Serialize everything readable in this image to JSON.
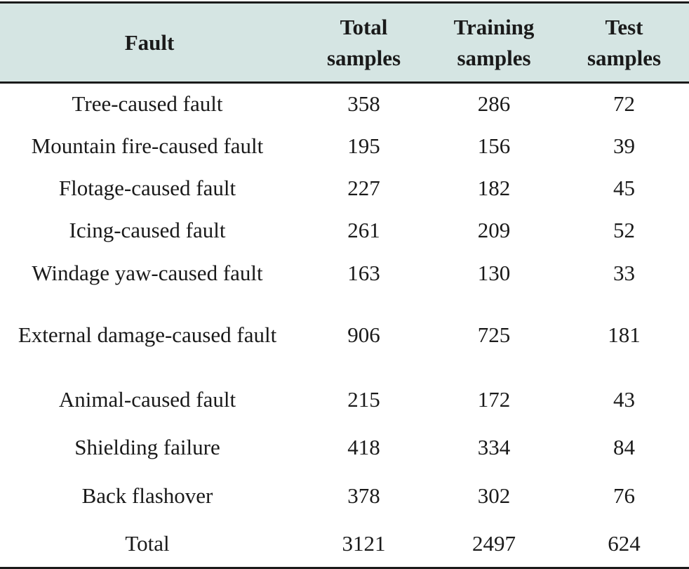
{
  "table": {
    "headers": {
      "fault": "Fault",
      "total_line1": "Total",
      "total_line2": "samples",
      "training_line1": "Training",
      "training_line2": "samples",
      "test_line1": "Test",
      "test_line2": "samples"
    },
    "rows": [
      {
        "fault": "Tree-caused fault",
        "total": "358",
        "training": "286",
        "test": "72"
      },
      {
        "fault": "Mountain fire-caused fault",
        "total": "195",
        "training": "156",
        "test": "39"
      },
      {
        "fault": "Flotage-caused fault",
        "total": "227",
        "training": "182",
        "test": "45"
      },
      {
        "fault": "Icing-caused fault",
        "total": "261",
        "training": "209",
        "test": "52"
      },
      {
        "fault": "Windage yaw-caused fault",
        "total": "163",
        "training": "130",
        "test": "33"
      },
      {
        "fault": "External damage-caused fault",
        "total": "906",
        "training": "725",
        "test": "181"
      },
      {
        "fault": "Animal-caused fault",
        "total": "215",
        "training": "172",
        "test": "43"
      },
      {
        "fault": "Shielding failure",
        "total": "418",
        "training": "334",
        "test": "84"
      },
      {
        "fault": "Back flashover",
        "total": "378",
        "training": "302",
        "test": "76"
      },
      {
        "fault": "Total",
        "total": "3121",
        "training": "2497",
        "test": "624"
      }
    ]
  },
  "colors": {
    "header_background": "#d5e5e3",
    "rule": "#1a1a1a",
    "text": "#1a1a1a"
  }
}
